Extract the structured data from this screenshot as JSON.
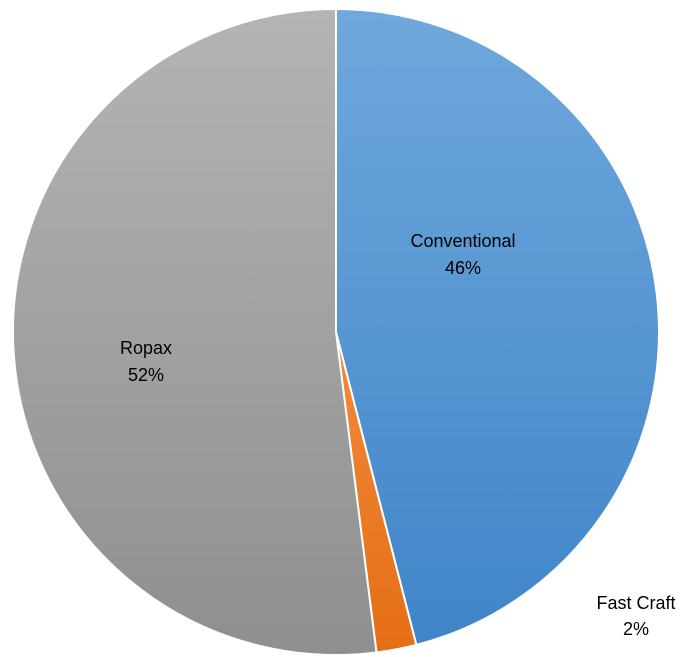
{
  "chart_data": {
    "type": "pie",
    "title": "",
    "legend": "none",
    "slices": [
      {
        "name": "Conventional",
        "value": 46,
        "label": "Conventional",
        "percent_label": "46%",
        "color_top": "#6FA8DC",
        "color_bottom": "#3F85C8"
      },
      {
        "name": "Fast Craft",
        "value": 2,
        "label": "Fast Craft",
        "percent_label": "2%",
        "color_top": "#F28A3A",
        "color_bottom": "#E46E16"
      },
      {
        "name": "Ropax",
        "value": 52,
        "label": "Ropax",
        "percent_label": "52%",
        "color_top": "#B4B4B4",
        "color_bottom": "#8F8F8F"
      }
    ]
  }
}
